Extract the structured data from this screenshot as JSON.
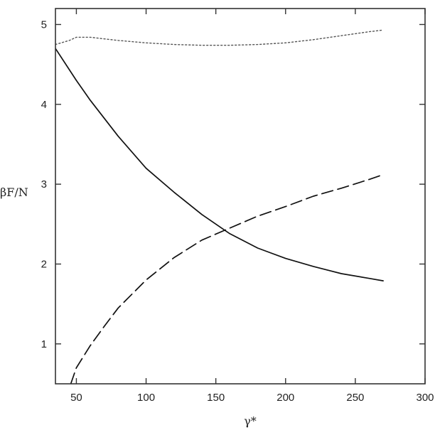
{
  "chart_data": {
    "type": "line",
    "xlabel": "γ*",
    "ylabel": "βF/N",
    "xlim": [
      35,
      300
    ],
    "ylim": [
      0.5,
      5.2
    ],
    "grid": false,
    "legend": "none",
    "x_ticks": [
      50,
      100,
      150,
      200,
      250,
      300
    ],
    "x_tick_labels": [
      "50",
      "100",
      "150",
      "200",
      "250",
      "300"
    ],
    "y_ticks": [
      1,
      2,
      3,
      4,
      5
    ],
    "y_tick_labels": [
      "1",
      "2",
      "3",
      "4",
      "5"
    ],
    "series": [
      {
        "style": "dotted",
        "color": "#555555",
        "x": [
          35,
          45,
          50,
          60,
          70,
          80,
          100,
          120,
          140,
          160,
          180,
          200,
          220,
          240,
          260,
          270
        ],
        "y": [
          4.75,
          4.8,
          4.84,
          4.84,
          4.82,
          4.8,
          4.77,
          4.75,
          4.74,
          4.74,
          4.75,
          4.77,
          4.81,
          4.86,
          4.91,
          4.93
        ]
      },
      {
        "style": "solid",
        "color": "#111111",
        "x": [
          35,
          50,
          60,
          80,
          100,
          120,
          140,
          160,
          180,
          200,
          220,
          240,
          260,
          270
        ],
        "y": [
          4.7,
          4.3,
          4.05,
          3.6,
          3.2,
          2.9,
          2.62,
          2.38,
          2.2,
          2.07,
          1.97,
          1.88,
          1.82,
          1.79
        ]
      },
      {
        "style": "dashed",
        "color": "#111111",
        "x": [
          46,
          50,
          60,
          70,
          80,
          100,
          120,
          140,
          160,
          180,
          200,
          220,
          240,
          260,
          270
        ],
        "y": [
          0.5,
          0.7,
          0.98,
          1.22,
          1.45,
          1.8,
          2.08,
          2.3,
          2.45,
          2.6,
          2.72,
          2.85,
          2.95,
          3.06,
          3.12
        ]
      }
    ]
  }
}
